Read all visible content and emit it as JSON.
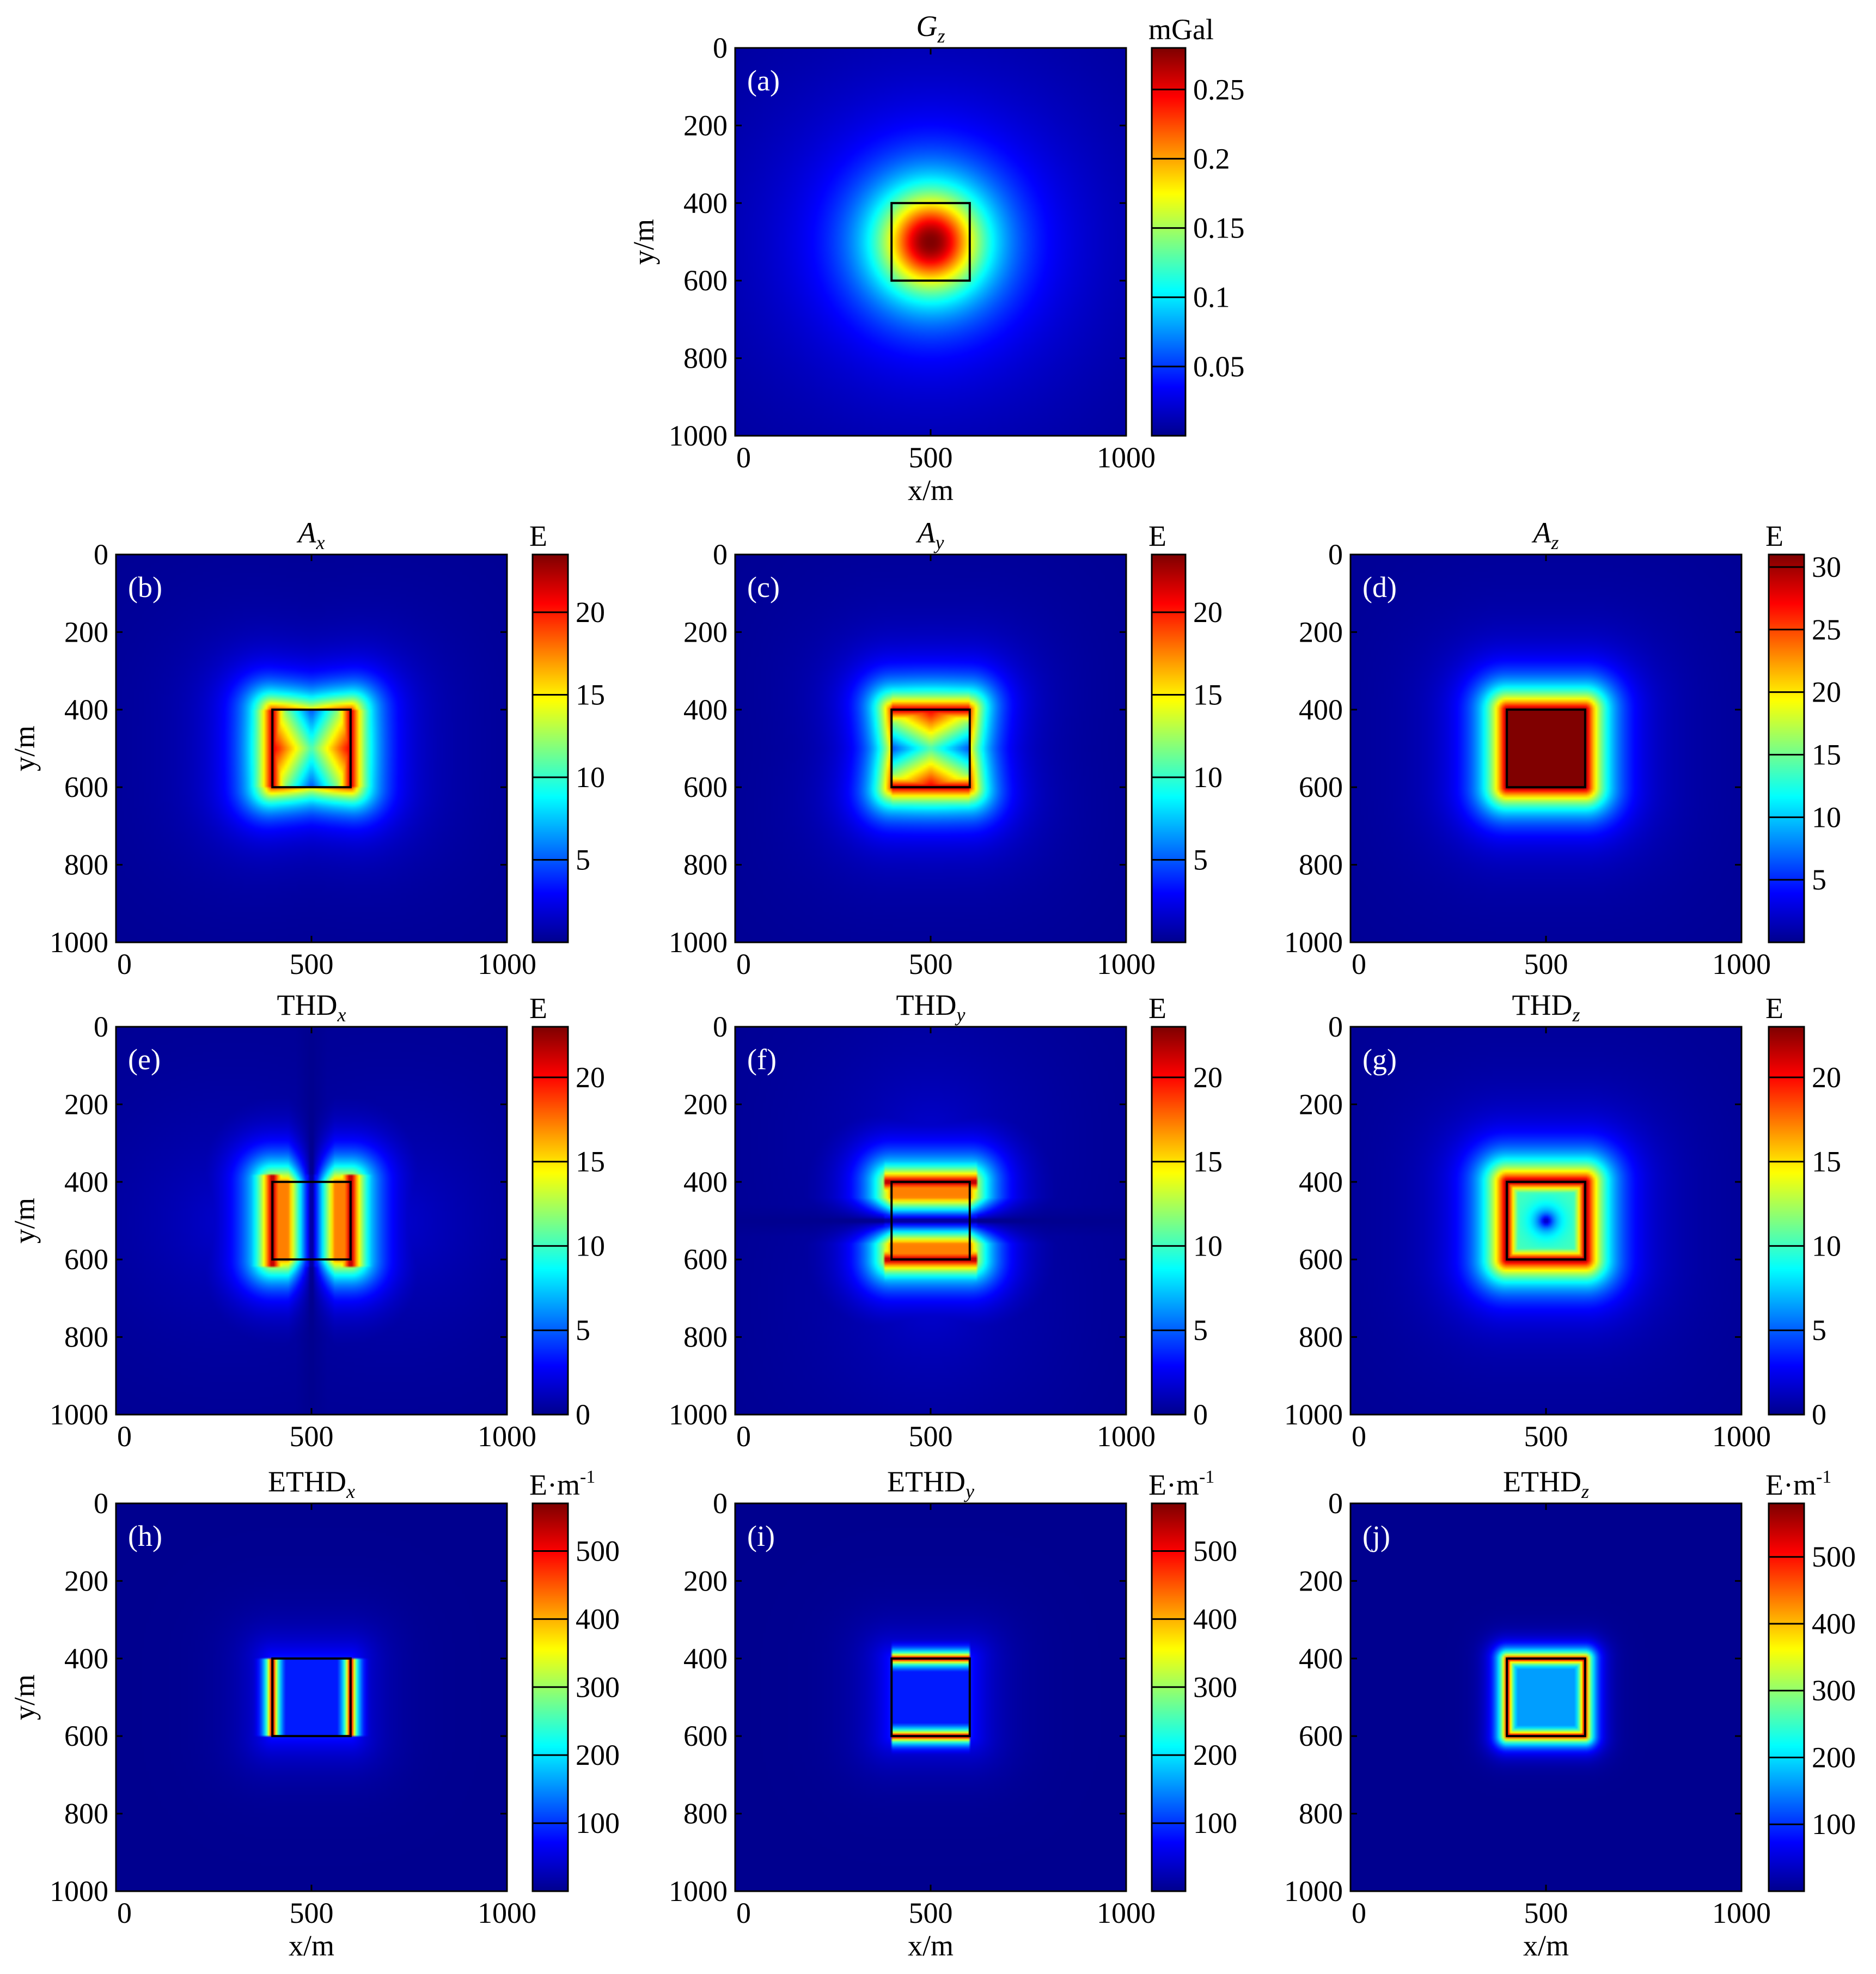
{
  "colormap": [
    "#00008f",
    "#0000ff",
    "#0080ff",
    "#00ffff",
    "#80ff80",
    "#ffff00",
    "#ff8000",
    "#ff0000",
    "#800000"
  ],
  "frame_color": "#000000",
  "chart_data": [
    {
      "id": "a",
      "type": "heatmap",
      "panel_label": "(a)",
      "title": "G",
      "title_sub": "z",
      "title_italic": true,
      "xlabel": "x/m",
      "ylabel": "y/m",
      "xticks": [
        "0",
        "500",
        "1000"
      ],
      "yticks": [
        "0",
        "200",
        "400",
        "600",
        "800",
        "1000"
      ],
      "xlim": [
        0,
        1000
      ],
      "ylim": [
        0,
        1000
      ],
      "colorbar": {
        "unit": "mGal",
        "ticks": [
          "0.05",
          "0.1",
          "0.15",
          "0.2",
          "0.25"
        ],
        "tick_values": [
          0.05,
          0.1,
          0.15,
          0.2,
          0.25
        ],
        "min": 0,
        "max": 0.28
      },
      "body_outline": {
        "x": [
          400,
          600
        ],
        "y": [
          400,
          600
        ]
      },
      "field_pattern": "gz"
    },
    {
      "id": "b",
      "type": "heatmap",
      "panel_label": "(b)",
      "title": "A",
      "title_sub": "x",
      "title_italic": true,
      "xlabel": "",
      "ylabel": "y/m",
      "xticks": [
        "0",
        "500",
        "1000"
      ],
      "yticks": [
        "0",
        "200",
        "400",
        "600",
        "800",
        "1000"
      ],
      "xlim": [
        0,
        1000
      ],
      "ylim": [
        0,
        1000
      ],
      "colorbar": {
        "unit": "E",
        "ticks": [
          "5",
          "10",
          "15",
          "20"
        ],
        "tick_values": [
          5,
          10,
          15,
          20
        ],
        "min": 0,
        "max": 23.5
      },
      "body_outline": {
        "x": [
          400,
          600
        ],
        "y": [
          400,
          600
        ]
      },
      "field_pattern": "ax"
    },
    {
      "id": "c",
      "type": "heatmap",
      "panel_label": "(c)",
      "title": "A",
      "title_sub": "y",
      "title_italic": true,
      "xlabel": "",
      "ylabel": "",
      "xticks": [
        "0",
        "500",
        "1000"
      ],
      "yticks": [
        "0",
        "200",
        "400",
        "600",
        "800",
        "1000"
      ],
      "xlim": [
        0,
        1000
      ],
      "ylim": [
        0,
        1000
      ],
      "colorbar": {
        "unit": "E",
        "ticks": [
          "5",
          "10",
          "15",
          "20"
        ],
        "tick_values": [
          5,
          10,
          15,
          20
        ],
        "min": 0,
        "max": 23.5
      },
      "body_outline": {
        "x": [
          400,
          600
        ],
        "y": [
          400,
          600
        ]
      },
      "field_pattern": "ay"
    },
    {
      "id": "d",
      "type": "heatmap",
      "panel_label": "(d)",
      "title": "A",
      "title_sub": "z",
      "title_italic": true,
      "xlabel": "",
      "ylabel": "",
      "xticks": [
        "0",
        "500",
        "1000"
      ],
      "yticks": [
        "0",
        "200",
        "400",
        "600",
        "800",
        "1000"
      ],
      "xlim": [
        0,
        1000
      ],
      "ylim": [
        0,
        1000
      ],
      "colorbar": {
        "unit": "E",
        "ticks": [
          "5",
          "10",
          "15",
          "20",
          "25",
          "30"
        ],
        "tick_values": [
          5,
          10,
          15,
          20,
          25,
          30
        ],
        "min": 0,
        "max": 31
      },
      "body_outline": {
        "x": [
          400,
          600
        ],
        "y": [
          400,
          600
        ]
      },
      "field_pattern": "az"
    },
    {
      "id": "e",
      "type": "heatmap",
      "panel_label": "(e)",
      "title": "THD",
      "title_sub": "x",
      "title_italic": false,
      "xlabel": "",
      "ylabel": "y/m",
      "xticks": [
        "0",
        "500",
        "1000"
      ],
      "yticks": [
        "0",
        "200",
        "400",
        "600",
        "800",
        "1000"
      ],
      "xlim": [
        0,
        1000
      ],
      "ylim": [
        0,
        1000
      ],
      "colorbar": {
        "unit": "E",
        "ticks": [
          "0",
          "5",
          "10",
          "15",
          "20"
        ],
        "tick_values": [
          0,
          5,
          10,
          15,
          20
        ],
        "min": 0,
        "max": 23
      },
      "body_outline": {
        "x": [
          400,
          600
        ],
        "y": [
          400,
          600
        ]
      },
      "field_pattern": "thdx"
    },
    {
      "id": "f",
      "type": "heatmap",
      "panel_label": "(f)",
      "title": "THD",
      "title_sub": "y",
      "title_italic": false,
      "xlabel": "",
      "ylabel": "",
      "xticks": [
        "0",
        "500",
        "1000"
      ],
      "yticks": [
        "0",
        "200",
        "400",
        "600",
        "800",
        "1000"
      ],
      "xlim": [
        0,
        1000
      ],
      "ylim": [
        0,
        1000
      ],
      "colorbar": {
        "unit": "E",
        "ticks": [
          "0",
          "5",
          "10",
          "15",
          "20"
        ],
        "tick_values": [
          0,
          5,
          10,
          15,
          20
        ],
        "min": 0,
        "max": 23
      },
      "body_outline": {
        "x": [
          400,
          600
        ],
        "y": [
          400,
          600
        ]
      },
      "field_pattern": "thdy"
    },
    {
      "id": "g",
      "type": "heatmap",
      "panel_label": "(g)",
      "title": "THD",
      "title_sub": "z",
      "title_italic": false,
      "xlabel": "",
      "ylabel": "",
      "xticks": [
        "0",
        "500",
        "1000"
      ],
      "yticks": [
        "0",
        "200",
        "400",
        "600",
        "800",
        "1000"
      ],
      "xlim": [
        0,
        1000
      ],
      "ylim": [
        0,
        1000
      ],
      "colorbar": {
        "unit": "E",
        "ticks": [
          "0",
          "5",
          "10",
          "15",
          "20"
        ],
        "tick_values": [
          0,
          5,
          10,
          15,
          20
        ],
        "min": 0,
        "max": 23
      },
      "body_outline": {
        "x": [
          400,
          600
        ],
        "y": [
          400,
          600
        ]
      },
      "field_pattern": "thdz"
    },
    {
      "id": "h",
      "type": "heatmap",
      "panel_label": "(h)",
      "title": "ETHD",
      "title_sub": "x",
      "title_italic": false,
      "xlabel": "x/m",
      "ylabel": "y/m",
      "xticks": [
        "0",
        "500",
        "1000"
      ],
      "yticks": [
        "0",
        "200",
        "400",
        "600",
        "800",
        "1000"
      ],
      "xlim": [
        0,
        1000
      ],
      "ylim": [
        0,
        1000
      ],
      "colorbar": {
        "unit": "E·m",
        "unit_sup": "-1",
        "ticks": [
          "100",
          "200",
          "300",
          "400",
          "500"
        ],
        "tick_values": [
          100,
          200,
          300,
          400,
          500
        ],
        "min": 0,
        "max": 570
      },
      "body_outline": {
        "x": [
          400,
          600
        ],
        "y": [
          400,
          600
        ]
      },
      "field_pattern": "ethdx"
    },
    {
      "id": "i",
      "type": "heatmap",
      "panel_label": "(i)",
      "title": "ETHD",
      "title_sub": "y",
      "title_italic": false,
      "xlabel": "x/m",
      "ylabel": "",
      "xticks": [
        "0",
        "500",
        "1000"
      ],
      "yticks": [
        "0",
        "200",
        "400",
        "600",
        "800",
        "1000"
      ],
      "xlim": [
        0,
        1000
      ],
      "ylim": [
        0,
        1000
      ],
      "colorbar": {
        "unit": "E·m",
        "unit_sup": "-1",
        "ticks": [
          "100",
          "200",
          "300",
          "400",
          "500"
        ],
        "tick_values": [
          100,
          200,
          300,
          400,
          500
        ],
        "min": 0,
        "max": 570
      },
      "body_outline": {
        "x": [
          400,
          600
        ],
        "y": [
          400,
          600
        ]
      },
      "field_pattern": "ethdy"
    },
    {
      "id": "j",
      "type": "heatmap",
      "panel_label": "(j)",
      "title": "ETHD",
      "title_sub": "z",
      "title_italic": false,
      "xlabel": "x/m",
      "ylabel": "",
      "xticks": [
        "0",
        "500",
        "1000"
      ],
      "yticks": [
        "0",
        "200",
        "400",
        "600",
        "800",
        "1000"
      ],
      "xlim": [
        0,
        1000
      ],
      "ylim": [
        0,
        1000
      ],
      "colorbar": {
        "unit": "E·m",
        "unit_sup": "-1",
        "ticks": [
          "100",
          "200",
          "300",
          "400",
          "500"
        ],
        "tick_values": [
          100,
          200,
          300,
          400,
          500
        ],
        "min": 0,
        "max": 580
      },
      "body_outline": {
        "x": [
          400,
          600
        ],
        "y": [
          400,
          600
        ]
      },
      "field_pattern": "ethdz"
    }
  ]
}
